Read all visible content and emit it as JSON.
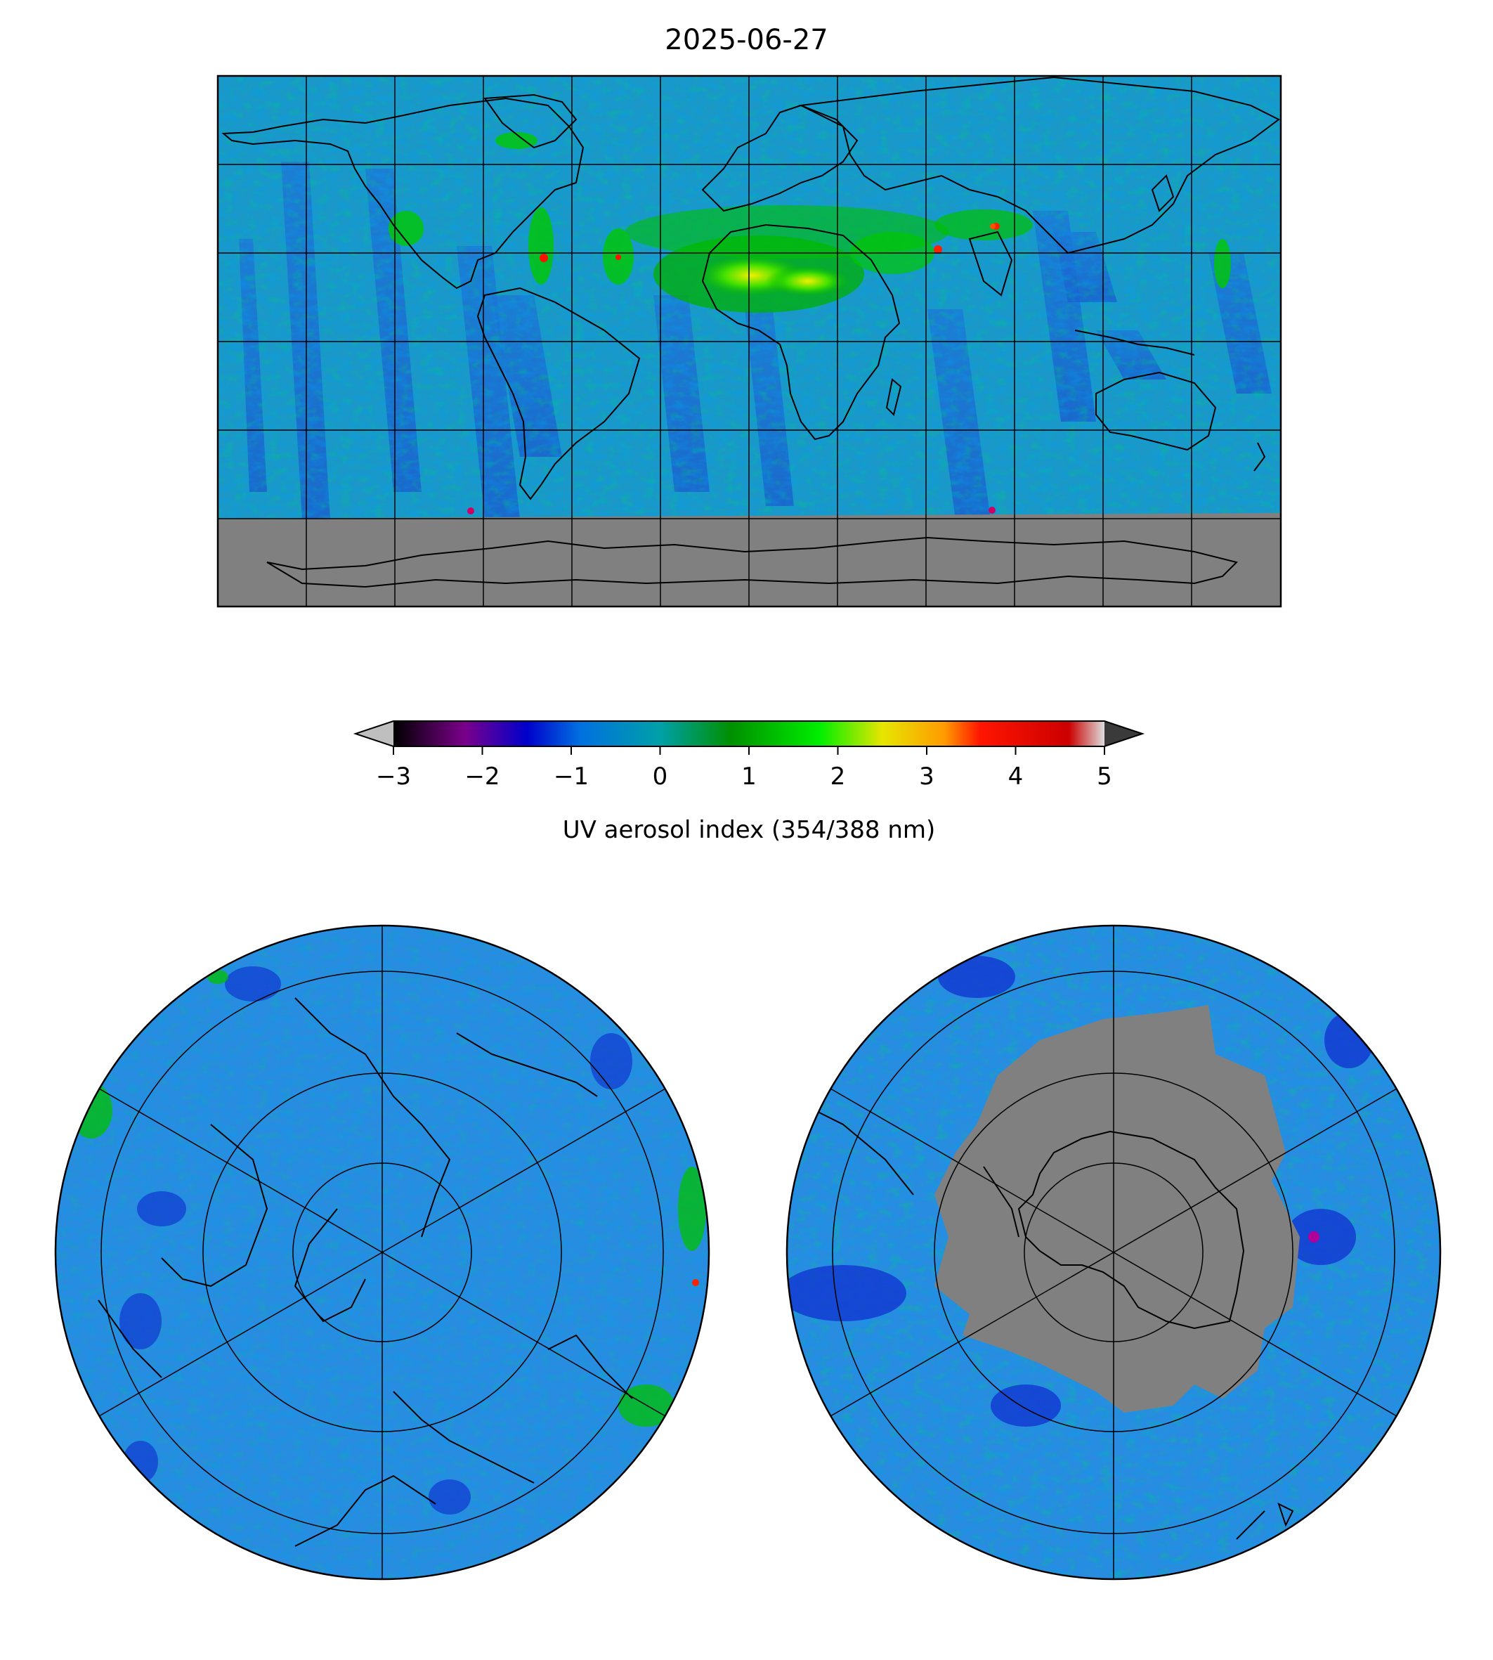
{
  "title": "2025-06-27",
  "colorbar": {
    "label": "UV aerosol index (354/388 nm)",
    "ticks": [
      "−3",
      "−2",
      "−1",
      "0",
      "1",
      "2",
      "3",
      "4",
      "5"
    ],
    "tick_values": [
      -3,
      -2,
      -1,
      0,
      1,
      2,
      3,
      4,
      5
    ],
    "range": [
      -3,
      5
    ],
    "extend": "both",
    "under_color": "#bfbfbf",
    "over_color": "#3a3a3a",
    "stops": [
      {
        "v": -3,
        "c": "#000000"
      },
      {
        "v": -2.2,
        "c": "#7a008a"
      },
      {
        "v": -1.5,
        "c": "#0000cc"
      },
      {
        "v": -0.9,
        "c": "#0070e0"
      },
      {
        "v": 0,
        "c": "#00a0a8"
      },
      {
        "v": 0.8,
        "c": "#009000"
      },
      {
        "v": 1.8,
        "c": "#00ee00"
      },
      {
        "v": 2.5,
        "c": "#e6e600"
      },
      {
        "v": 3.2,
        "c": "#ff9a00"
      },
      {
        "v": 3.6,
        "c": "#ff1500"
      },
      {
        "v": 4.6,
        "c": "#cc0000"
      },
      {
        "v": 5,
        "c": "#dddddd"
      }
    ]
  },
  "maps": {
    "global": {
      "projection": "plate-carree",
      "no_data_color": "#808080",
      "background": "#1a9ac8"
    },
    "north_polar": {
      "projection": "north-polar-stereographic",
      "background": "#2a8ce0"
    },
    "south_polar": {
      "projection": "south-polar-stereographic",
      "no_data_color": "#808080",
      "background": "#2a8ce0"
    }
  }
}
